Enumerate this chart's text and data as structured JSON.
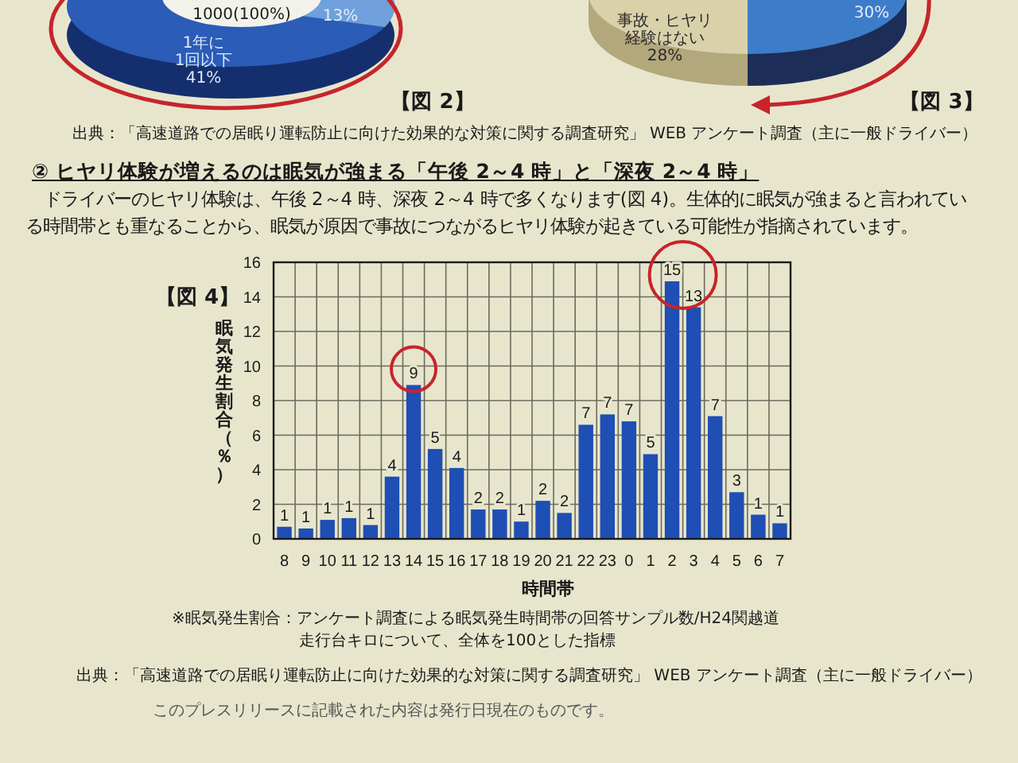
{
  "chart_data": [
    {
      "type": "other",
      "annotations": [
        "1000(100%)",
        "13%",
        "1年に1回以下41%",
        "【図 2】",
        "事故・ヒヤリ経験はない28%",
        "30%",
        "【図 3】",
        "出典：「高速道路での居眠り運転防止に向けた効果的な対策に関する調査研究」 WEB アンケート調査（主に一般ドライバー）"
      ]
    },
    {
      "type": "bar",
      "title": "② ヒヤリ体験が増えるのは眠気が強まる「午後 2～4 時」と「深夜 2～4 時」",
      "subtitle": "ドライバーのヒヤリ体験は、午後 2～4 時、深夜 2～4 時で多くなります(図 4)。生体的に眠気が強まると言われている時間帯とも重なることから、眠気が原因で事故につながるヒヤリ体験が起きている可能性が指摘されています。",
      "xlabel": "時間帯",
      "ylabel": "眠気発生割合（％）",
      "categories": [
        "8",
        "9",
        "10",
        "11",
        "12",
        "13",
        "14",
        "15",
        "16",
        "17",
        "18",
        "19",
        "20",
        "21",
        "22",
        "23",
        "0",
        "1",
        "2",
        "3",
        "4",
        "5",
        "6",
        "7"
      ],
      "values": [
        0.7,
        0.6,
        1.1,
        1.2,
        0.8,
        3.6,
        8.9,
        5.2,
        4.1,
        1.7,
        1.7,
        1.0,
        2.2,
        1.5,
        6.6,
        7.2,
        6.8,
        4.9,
        14.9,
        13.4,
        7.1,
        2.7,
        1.4,
        0.9
      ],
      "value_labels": [
        "1",
        "1",
        "1",
        "1",
        "1",
        "4",
        "9",
        "5",
        "4",
        "2",
        "2",
        "1",
        "2",
        "2",
        "7",
        "7",
        "7",
        "5",
        "15",
        "13",
        "7",
        "3",
        "1",
        "1"
      ],
      "color": "#1f4eb4",
      "ylim": [
        0,
        16
      ],
      "yticks": [
        0,
        2,
        4,
        6,
        8,
        10,
        12,
        14,
        16
      ],
      "grid": true,
      "annotations": [
        "【図 4】",
        "※眠気発生割合：アンケート調査による眠気発生時間帯の回答サンプル数/H24関越道走行台キロについて、全体を100とした指標",
        "出典：「高速道路での居眠り運転防止に向けた効果的な対策に関する調査研究」 WEB アンケート調査（主に一般ドライバー）",
        "このプレスリリースに記載された内容は発行日現在のものです。"
      ]
    }
  ]
}
